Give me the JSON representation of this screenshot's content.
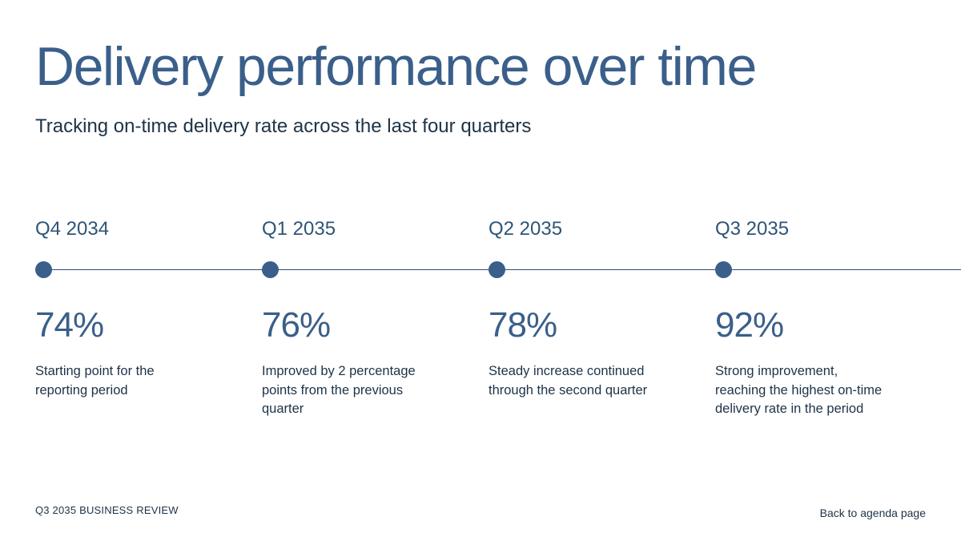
{
  "title": "Delivery performance over time",
  "subtitle": "Tracking on-time delivery rate across the last four quarters",
  "milestones": [
    {
      "quarter": "Q4 2034",
      "value": "74%",
      "description": "Starting point for the reporting period"
    },
    {
      "quarter": "Q1 2035",
      "value": "76%",
      "description": "Improved by 2 percentage points from the previous quarter"
    },
    {
      "quarter": "Q2 2035",
      "value": "78%",
      "description": "Steady increase continued through the second quarter"
    },
    {
      "quarter": "Q3 2035",
      "value": "92%",
      "description": "Strong improvement, reaching the highest on-time delivery rate in the period"
    }
  ],
  "footer": {
    "report_label": "Q3 2035 BUSINESS REVIEW",
    "back_link": "Back to agenda page"
  },
  "colors": {
    "accent": "#3a5f8a",
    "text_dark": "#1d3347",
    "background": "#ffffff"
  },
  "icons": {
    "milestone_marker": "filled-circle"
  }
}
